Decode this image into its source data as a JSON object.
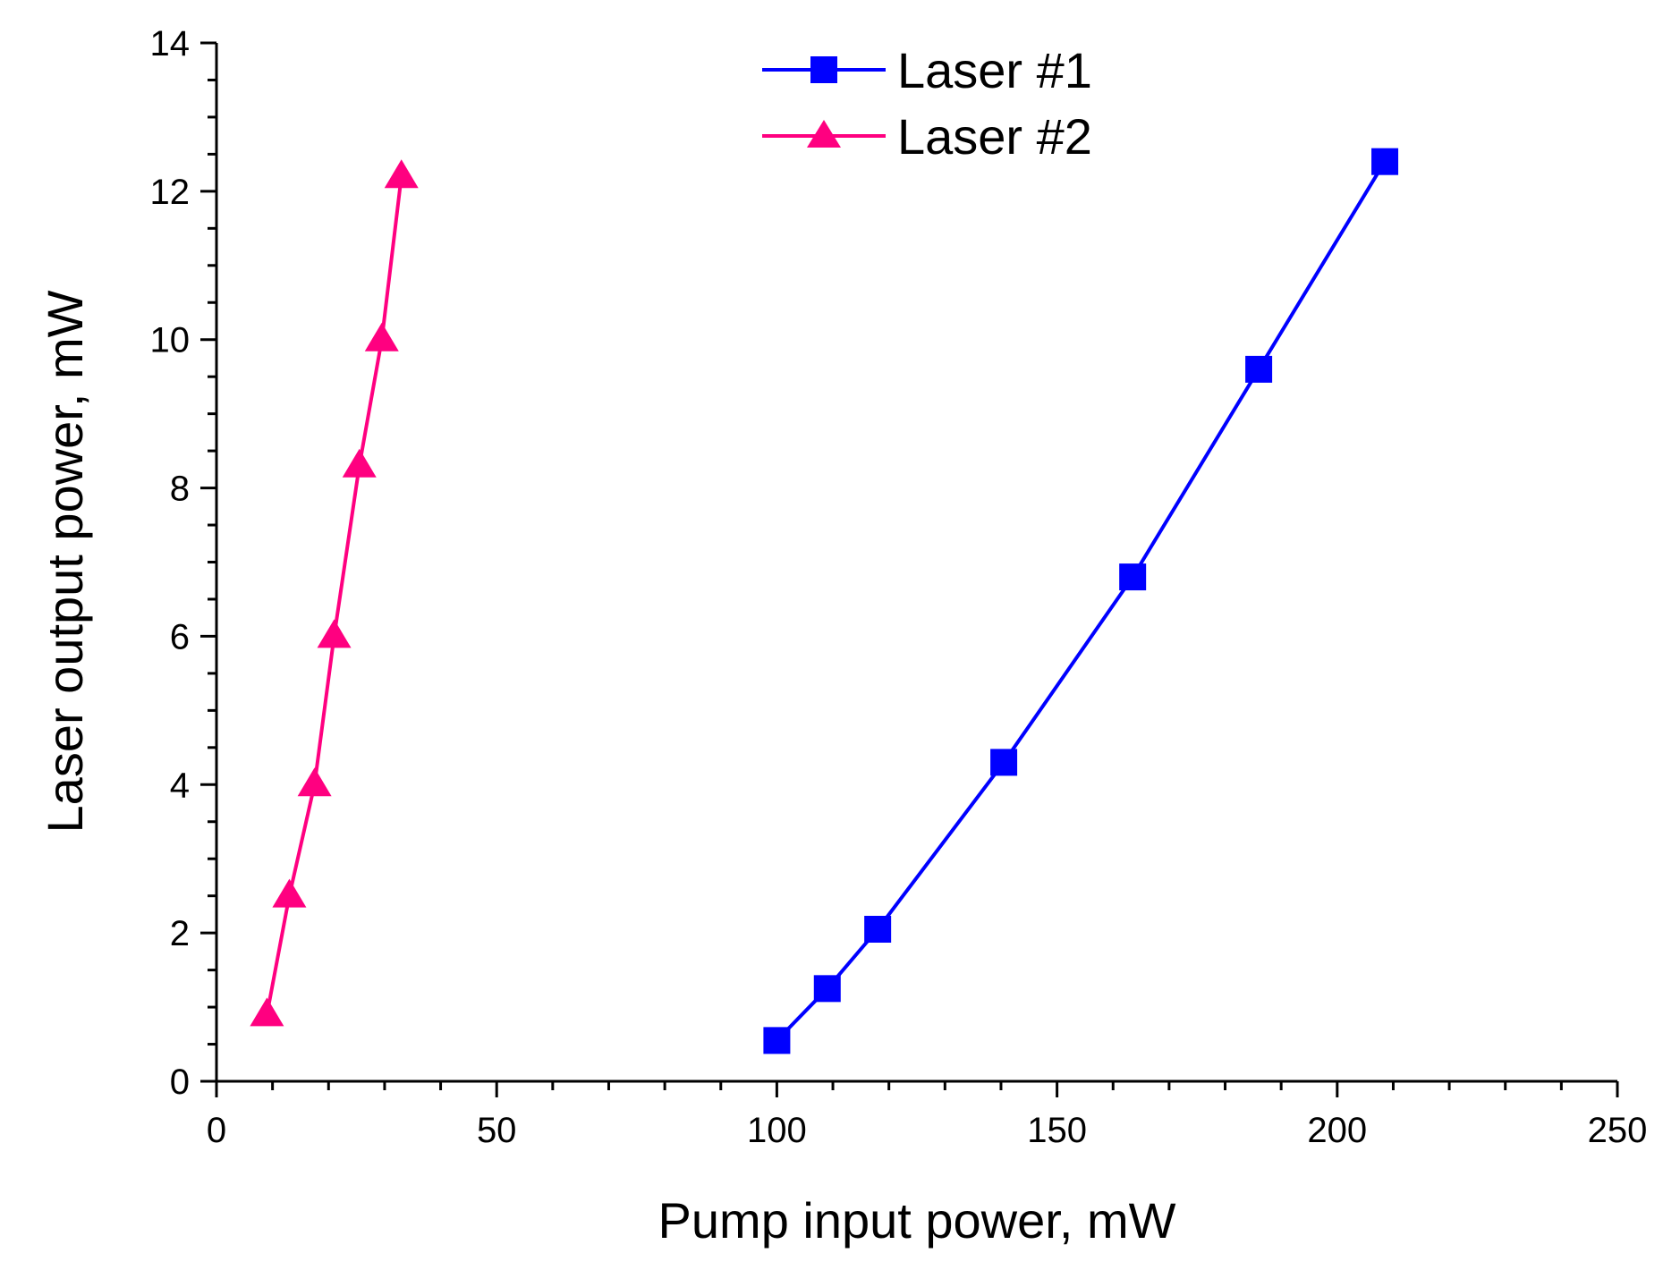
{
  "chart_data": {
    "type": "line",
    "title": "",
    "xlabel": "Pump input power, mW",
    "ylabel": "Laser output power, mW",
    "xlim": [
      0,
      250
    ],
    "ylim": [
      0,
      14
    ],
    "x_ticks": [
      0,
      50,
      100,
      150,
      200,
      250
    ],
    "y_ticks": [
      0,
      2,
      4,
      6,
      8,
      10,
      12,
      14
    ],
    "x_tick_labels": [
      "0",
      "50",
      "100",
      "150",
      "200",
      "250"
    ],
    "y_tick_labels": [
      "0",
      "2",
      "4",
      "6",
      "8",
      "10",
      "12",
      "14"
    ],
    "grid": false,
    "legend_position": "top-center",
    "series": [
      {
        "name": "Laser #1",
        "color": "#0000ff",
        "marker": "square",
        "x": [
          100,
          109,
          118,
          140.5,
          163.5,
          186,
          208.5
        ],
        "y": [
          0.55,
          1.25,
          2.05,
          4.3,
          6.8,
          9.6,
          12.4
        ]
      },
      {
        "name": "Laser #2",
        "color": "#ff0080",
        "marker": "triangle",
        "x": [
          9,
          13,
          17.5,
          21,
          25.5,
          29.5,
          33
        ],
        "y": [
          0.9,
          2.5,
          4.0,
          6.0,
          8.3,
          10.0,
          12.2
        ]
      }
    ]
  }
}
